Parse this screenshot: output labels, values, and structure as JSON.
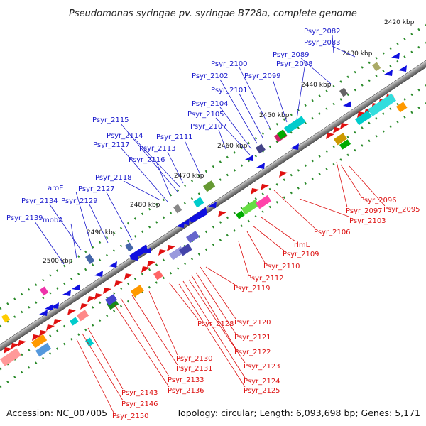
{
  "title": "Pseudomonas syringae pv. syringae B728a, complete genome",
  "footer": {
    "accession": "Accession: NC_007005",
    "stats": "Topology: circular; Length: 6,093,698 bp; Genes: 5,171"
  },
  "scale_labels": [
    "2420 kbp",
    "2430 kbp",
    "2440 kbp",
    "2450 kbp",
    "2460 kbp",
    "2470 kbp",
    "2480 kbp",
    "2490 kbp",
    "2500 kbp"
  ],
  "upper_gene_labels": [
    "Psyr_2082",
    "Psyr_2083",
    "Psyr_2089",
    "Psyr_2098",
    "Psyr_2099",
    "Psyr_2100",
    "Psyr_2101",
    "Psyr_2102",
    "Psyr_2104",
    "Psyr_2105",
    "Psyr_2107",
    "Psyr_2111",
    "Psyr_2113",
    "Psyr_2114",
    "Psyr_2115",
    "Psyr_2116",
    "Psyr_2117",
    "Psyr_2118",
    "Psyr_2127",
    "aroE",
    "Psyr_2129",
    "Psyr_2134",
    "mobA",
    "Psyr_2139"
  ],
  "lower_gene_labels": [
    "Psyr_2096",
    "Psyr_2097",
    "Psyr_2095",
    "Psyr_2103",
    "Psyr_2106",
    "rlmL",
    "Psyr_2109",
    "Psyr_2110",
    "Psyr_2112",
    "Psyr_2119",
    "Psyr_2120",
    "Psyr_2121",
    "Psyr_2122",
    "Psyr_2123",
    "Psyr_2124",
    "Psyr_2125",
    "Psyr_2128",
    "Psyr_2130",
    "Psyr_2131",
    "Psyr_2133",
    "Psyr_2136",
    "Psyr_2143",
    "Psyr_2146",
    "Psyr_2150"
  ],
  "colors": {
    "upper_label": "#1a1acc",
    "lower_label": "#dd1111",
    "backbone": "#8a8a8a",
    "tick": "#2a8a2a"
  }
}
